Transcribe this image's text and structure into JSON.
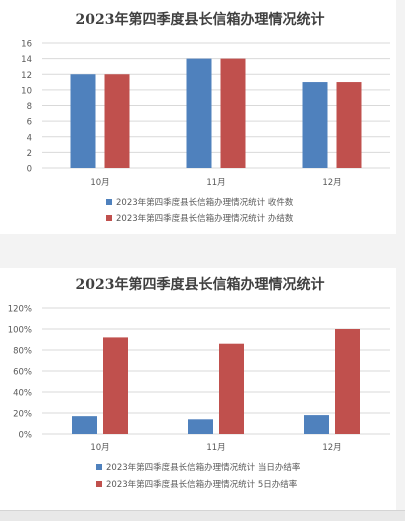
{
  "colors": {
    "series_a": "#4f81bd",
    "series_b": "#c0504d",
    "grid": "#d9d9d9",
    "axis_text": "#595959",
    "title": "#404040"
  },
  "chart_data": [
    {
      "type": "bar",
      "title": "2023年第四季度县长信箱办理情况统计",
      "categories": [
        "10月",
        "11月",
        "12月"
      ],
      "series": [
        {
          "name": "2023年第四季度县长信箱办理情况统计 收件数",
          "values": [
            12,
            14,
            11
          ]
        },
        {
          "name": "2023年第四季度县长信箱办理情况统计 办结数",
          "values": [
            12,
            14,
            11
          ]
        }
      ],
      "ylim": [
        0,
        16
      ],
      "yticks": [
        "0",
        "2",
        "4",
        "6",
        "8",
        "10",
        "12",
        "14",
        "16"
      ],
      "ytick_values": [
        0,
        2,
        4,
        6,
        8,
        10,
        12,
        14,
        16
      ],
      "grid": true,
      "legend": "bottom"
    },
    {
      "type": "bar",
      "title": "2023年第四季度县长信箱办理情况统计",
      "categories": [
        "10月",
        "11月",
        "12月"
      ],
      "series": [
        {
          "name": "2023年第四季度县长信箱办理情况统计 当日办结率",
          "values": [
            0.17,
            0.14,
            0.18
          ]
        },
        {
          "name": "2023年第四季度县长信箱办理情况统计 5日办结率",
          "values": [
            0.92,
            0.86,
            1.0
          ]
        }
      ],
      "ylim": [
        0,
        1.2
      ],
      "yticks": [
        "0%",
        "20%",
        "40%",
        "60%",
        "80%",
        "100%",
        "120%"
      ],
      "ytick_values": [
        0,
        0.2,
        0.4,
        0.6,
        0.8,
        1.0,
        1.2
      ],
      "grid": true,
      "legend": "bottom"
    }
  ]
}
